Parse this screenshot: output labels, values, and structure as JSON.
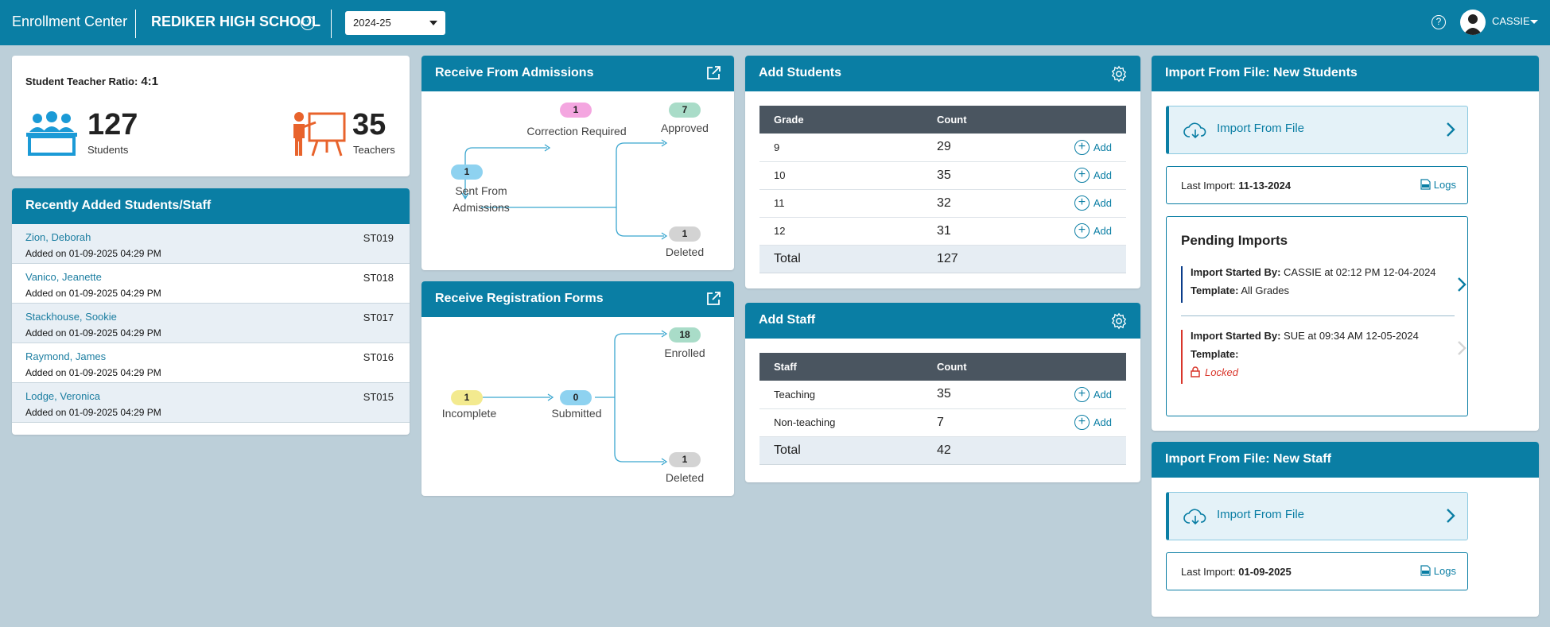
{
  "topbar": {
    "app_title": "Enrollment Center",
    "school": "REDIKER HIGH SCHOOL",
    "year": "2024-25",
    "username": "CASSIE"
  },
  "ratio": {
    "label": "Student Teacher Ratio:",
    "value": "4:1",
    "students_count": "127",
    "students_label": "Students",
    "teachers_count": "35",
    "teachers_label": "Teachers"
  },
  "recent": {
    "title": "Recently Added Students/Staff",
    "items": [
      {
        "name": "Zion, Deborah",
        "id": "ST019",
        "date": "Added on 01-09-2025 04:29 PM"
      },
      {
        "name": "Vanico, Jeanette",
        "id": "ST018",
        "date": "Added on 01-09-2025 04:29 PM"
      },
      {
        "name": "Stackhouse, Sookie",
        "id": "ST017",
        "date": "Added on 01-09-2025 04:29 PM"
      },
      {
        "name": "Raymond, James",
        "id": "ST016",
        "date": "Added on 01-09-2025 04:29 PM"
      },
      {
        "name": "Lodge, Veronica",
        "id": "ST015",
        "date": "Added on 01-09-2025 04:29 PM"
      }
    ]
  },
  "admissions": {
    "title": "Receive From Admissions",
    "sent": "1",
    "sent_label_1": "Sent From",
    "sent_label_2": "Admissions",
    "correction": "1",
    "correction_label": "Correction Required",
    "approved": "7",
    "approved_label": "Approved",
    "deleted": "1",
    "deleted_label": "Deleted"
  },
  "regforms": {
    "title": "Receive Registration Forms",
    "incomplete": "1",
    "incomplete_label": "Incomplete",
    "submitted": "0",
    "submitted_label": "Submitted",
    "enrolled": "18",
    "enrolled_label": "Enrolled",
    "deleted": "1",
    "deleted_label": "Deleted"
  },
  "add_students": {
    "title": "Add Students",
    "col_grade": "Grade",
    "col_count": "Count",
    "add_label": "Add",
    "rows": [
      {
        "grade": "9",
        "count": "29"
      },
      {
        "grade": "10",
        "count": "35"
      },
      {
        "grade": "11",
        "count": "32"
      },
      {
        "grade": "12",
        "count": "31"
      }
    ],
    "total_label": "Total",
    "total": "127"
  },
  "add_staff": {
    "title": "Add Staff",
    "col_staff": "Staff",
    "col_count": "Count",
    "add_label": "Add",
    "rows": [
      {
        "staff": "Teaching",
        "count": "35"
      },
      {
        "staff": "Non-teaching",
        "count": "7"
      }
    ],
    "total_label": "Total",
    "total": "42"
  },
  "import_students": {
    "title": "Import From File: New Students",
    "button": "Import From File",
    "last_label": "Last Import:",
    "last_date": "11-13-2024",
    "logs": "Logs",
    "pending_title": "Pending Imports",
    "p1_started_label": "Import Started By:",
    "p1_started": "CASSIE at 02:12 PM 12-04-2024",
    "p1_template_label": "Template:",
    "p1_template": "All Grades",
    "p2_started_label": "Import Started By:",
    "p2_started": "SUE at 09:34 AM 12-05-2024",
    "p2_template_label": "Template:",
    "p2_locked": "Locked"
  },
  "import_staff": {
    "title": "Import From File: New Staff",
    "button": "Import From File",
    "last_label": "Last Import:",
    "last_date": "01-09-2025",
    "logs": "Logs"
  },
  "colors": {
    "accent": "#0a7ea4",
    "background": "#bccfd9",
    "orange": "#e8632c",
    "blue_icon": "#1b9ad6"
  }
}
